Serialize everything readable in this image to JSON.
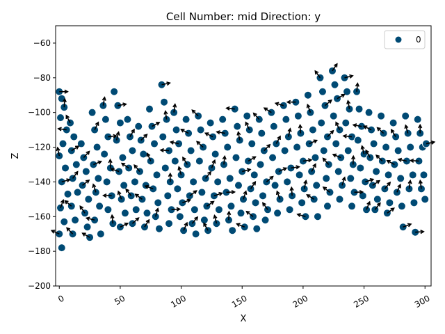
{
  "chart_data": {
    "type": "scatter",
    "title": "Cell Number: mid Direction: y",
    "xlabel": "X",
    "ylabel": "Z",
    "xlim": [
      -3,
      305
    ],
    "ylim": [
      -200,
      -50
    ],
    "xticks": [
      0,
      50,
      100,
      150,
      200,
      250,
      300
    ],
    "yticks": [
      -200,
      -180,
      -160,
      -140,
      -120,
      -100,
      -80,
      -60
    ],
    "legend": {
      "position": "top-right",
      "entries": [
        "0"
      ]
    },
    "grid": false,
    "colors": {
      "point": "#004a74",
      "point_edge": "#ffffff",
      "arrow": "#000000"
    },
    "series": [
      {
        "name": "0",
        "points": [
          [
            0,
            -88
          ],
          [
            2,
            -92
          ],
          [
            4,
            -97
          ],
          [
            1,
            -103
          ],
          [
            6,
            -110
          ],
          [
            3,
            -118
          ],
          [
            0,
            -125
          ],
          [
            5,
            -132
          ],
          [
            2,
            -140
          ],
          [
            7,
            -147
          ],
          [
            1,
            -155
          ],
          [
            4,
            -163
          ],
          [
            0,
            -170
          ],
          [
            2,
            -178
          ],
          [
            9,
            -106
          ],
          [
            12,
            -114
          ],
          [
            10,
            -122
          ],
          [
            14,
            -130
          ],
          [
            11,
            -138
          ],
          [
            15,
            -146
          ],
          [
            10,
            -154
          ],
          [
            13,
            -162
          ],
          [
            11,
            -170
          ],
          [
            18,
            -118
          ],
          [
            20,
            -126
          ],
          [
            22,
            -134
          ],
          [
            19,
            -142
          ],
          [
            24,
            -150
          ],
          [
            21,
            -158
          ],
          [
            23,
            -166
          ],
          [
            25,
            -172
          ],
          [
            27,
            -100
          ],
          [
            29,
            -110
          ],
          [
            31,
            -120
          ],
          [
            28,
            -130
          ],
          [
            32,
            -138
          ],
          [
            30,
            -146
          ],
          [
            33,
            -154
          ],
          [
            29,
            -162
          ],
          [
            34,
            -170
          ],
          [
            36,
            -96
          ],
          [
            38,
            -104
          ],
          [
            40,
            -114
          ],
          [
            37,
            -124
          ],
          [
            42,
            -132
          ],
          [
            39,
            -140
          ],
          [
            43,
            -148
          ],
          [
            40,
            -156
          ],
          [
            44,
            -164
          ],
          [
            45,
            -88
          ],
          [
            48,
            -96
          ],
          [
            50,
            -106
          ],
          [
            47,
            -116
          ],
          [
            52,
            -126
          ],
          [
            49,
            -134
          ],
          [
            53,
            -142
          ],
          [
            51,
            -150
          ],
          [
            54,
            -158
          ],
          [
            50,
            -166
          ],
          [
            56,
            -104
          ],
          [
            58,
            -114
          ],
          [
            60,
            -122
          ],
          [
            57,
            -132
          ],
          [
            62,
            -140
          ],
          [
            59,
            -148
          ],
          [
            63,
            -156
          ],
          [
            60,
            -164
          ],
          [
            65,
            -108
          ],
          [
            67,
            -116
          ],
          [
            69,
            -124
          ],
          [
            66,
            -134
          ],
          [
            71,
            -142
          ],
          [
            68,
            -150
          ],
          [
            72,
            -158
          ],
          [
            70,
            -166
          ],
          [
            74,
            -98
          ],
          [
            76,
            -108
          ],
          [
            78,
            -118
          ],
          [
            75,
            -128
          ],
          [
            80,
            -136
          ],
          [
            77,
            -144
          ],
          [
            81,
            -152
          ],
          [
            79,
            -160
          ],
          [
            82,
            -167
          ],
          [
            84,
            -84
          ],
          [
            86,
            -94
          ],
          [
            88,
            -104
          ],
          [
            85,
            -114
          ],
          [
            90,
            -122
          ],
          [
            87,
            -132
          ],
          [
            91,
            -140
          ],
          [
            89,
            -148
          ],
          [
            92,
            -156
          ],
          [
            90,
            -164
          ],
          [
            94,
            -100
          ],
          [
            96,
            -110
          ],
          [
            98,
            -118
          ],
          [
            95,
            -128
          ],
          [
            100,
            -136
          ],
          [
            97,
            -144
          ],
          [
            101,
            -152
          ],
          [
            99,
            -160
          ],
          [
            102,
            -168
          ],
          [
            104,
            -104
          ],
          [
            106,
            -112
          ],
          [
            108,
            -122
          ],
          [
            105,
            -130
          ],
          [
            110,
            -140
          ],
          [
            107,
            -148
          ],
          [
            111,
            -156
          ],
          [
            109,
            -164
          ],
          [
            112,
            -170
          ],
          [
            114,
            -102
          ],
          [
            116,
            -110
          ],
          [
            118,
            -120
          ],
          [
            115,
            -128
          ],
          [
            120,
            -138
          ],
          [
            117,
            -146
          ],
          [
            121,
            -154
          ],
          [
            119,
            -162
          ],
          [
            122,
            -168
          ],
          [
            124,
            -106
          ],
          [
            126,
            -114
          ],
          [
            128,
            -124
          ],
          [
            125,
            -132
          ],
          [
            130,
            -140
          ],
          [
            127,
            -148
          ],
          [
            131,
            -156
          ],
          [
            129,
            -164
          ],
          [
            134,
            -104
          ],
          [
            136,
            -112
          ],
          [
            138,
            -120
          ],
          [
            135,
            -130
          ],
          [
            140,
            -138
          ],
          [
            137,
            -146
          ],
          [
            141,
            -154
          ],
          [
            139,
            -162
          ],
          [
            142,
            -168
          ],
          [
            144,
            -98
          ],
          [
            146,
            -108
          ],
          [
            148,
            -116
          ],
          [
            145,
            -126
          ],
          [
            150,
            -134
          ],
          [
            147,
            -142
          ],
          [
            151,
            -150
          ],
          [
            149,
            -158
          ],
          [
            152,
            -166
          ],
          [
            154,
            -102
          ],
          [
            156,
            -110
          ],
          [
            158,
            -118
          ],
          [
            155,
            -128
          ],
          [
            160,
            -136
          ],
          [
            157,
            -144
          ],
          [
            161,
            -152
          ],
          [
            159,
            -160
          ],
          [
            162,
            -167
          ],
          [
            164,
            -104
          ],
          [
            166,
            -112
          ],
          [
            168,
            -122
          ],
          [
            165,
            -130
          ],
          [
            170,
            -140
          ],
          [
            167,
            -148
          ],
          [
            171,
            -156
          ],
          [
            169,
            -162
          ],
          [
            174,
            -100
          ],
          [
            176,
            -108
          ],
          [
            178,
            -118
          ],
          [
            175,
            -126
          ],
          [
            180,
            -134
          ],
          [
            177,
            -142
          ],
          [
            181,
            -150
          ],
          [
            179,
            -158
          ],
          [
            184,
            -96
          ],
          [
            186,
            -104
          ],
          [
            188,
            -114
          ],
          [
            185,
            -122
          ],
          [
            190,
            -132
          ],
          [
            187,
            -140
          ],
          [
            191,
            -148
          ],
          [
            189,
            -156
          ],
          [
            194,
            -94
          ],
          [
            196,
            -102
          ],
          [
            198,
            -112
          ],
          [
            195,
            -120
          ],
          [
            200,
            -128
          ],
          [
            197,
            -136
          ],
          [
            201,
            -144
          ],
          [
            199,
            -152
          ],
          [
            202,
            -160
          ],
          [
            204,
            -90
          ],
          [
            206,
            -100
          ],
          [
            208,
            -110
          ],
          [
            205,
            -118
          ],
          [
            210,
            -126
          ],
          [
            207,
            -134
          ],
          [
            211,
            -142
          ],
          [
            209,
            -150
          ],
          [
            212,
            -160
          ],
          [
            214,
            -80
          ],
          [
            216,
            -88
          ],
          [
            218,
            -96
          ],
          [
            215,
            -106
          ],
          [
            220,
            -114
          ],
          [
            217,
            -122
          ],
          [
            221,
            -130
          ],
          [
            219,
            -138
          ],
          [
            222,
            -146
          ],
          [
            220,
            -154
          ],
          [
            224,
            -76
          ],
          [
            226,
            -84
          ],
          [
            228,
            -92
          ],
          [
            225,
            -102
          ],
          [
            230,
            -110
          ],
          [
            227,
            -118
          ],
          [
            231,
            -126
          ],
          [
            229,
            -134
          ],
          [
            232,
            -142
          ],
          [
            230,
            -150
          ],
          [
            234,
            -80
          ],
          [
            236,
            -88
          ],
          [
            238,
            -98
          ],
          [
            235,
            -106
          ],
          [
            240,
            -114
          ],
          [
            237,
            -122
          ],
          [
            241,
            -130
          ],
          [
            239,
            -138
          ],
          [
            242,
            -146
          ],
          [
            240,
            -154
          ],
          [
            244,
            -88
          ],
          [
            246,
            -98
          ],
          [
            248,
            -108
          ],
          [
            245,
            -116
          ],
          [
            250,
            -124
          ],
          [
            247,
            -132
          ],
          [
            251,
            -140
          ],
          [
            249,
            -148
          ],
          [
            252,
            -156
          ],
          [
            254,
            -100
          ],
          [
            256,
            -110
          ],
          [
            258,
            -118
          ],
          [
            255,
            -126
          ],
          [
            260,
            -134
          ],
          [
            257,
            -142
          ],
          [
            261,
            -150
          ],
          [
            259,
            -156
          ],
          [
            264,
            -102
          ],
          [
            266,
            -112
          ],
          [
            268,
            -120
          ],
          [
            265,
            -128
          ],
          [
            270,
            -136
          ],
          [
            267,
            -144
          ],
          [
            271,
            -152
          ],
          [
            269,
            -158
          ],
          [
            274,
            -106
          ],
          [
            276,
            -114
          ],
          [
            278,
            -122
          ],
          [
            275,
            -130
          ],
          [
            280,
            -138
          ],
          [
            277,
            -146
          ],
          [
            281,
            -154
          ],
          [
            282,
            -166
          ],
          [
            284,
            -102
          ],
          [
            286,
            -112
          ],
          [
            288,
            -120
          ],
          [
            285,
            -128
          ],
          [
            290,
            -136
          ],
          [
            287,
            -144
          ],
          [
            291,
            -152
          ],
          [
            292,
            -169
          ],
          [
            294,
            -104
          ],
          [
            296,
            -112
          ],
          [
            298,
            -120
          ],
          [
            295,
            -128
          ],
          [
            299,
            -136
          ],
          [
            297,
            -144
          ],
          [
            300,
            -150
          ],
          [
            301,
            -118
          ]
        ]
      }
    ]
  }
}
